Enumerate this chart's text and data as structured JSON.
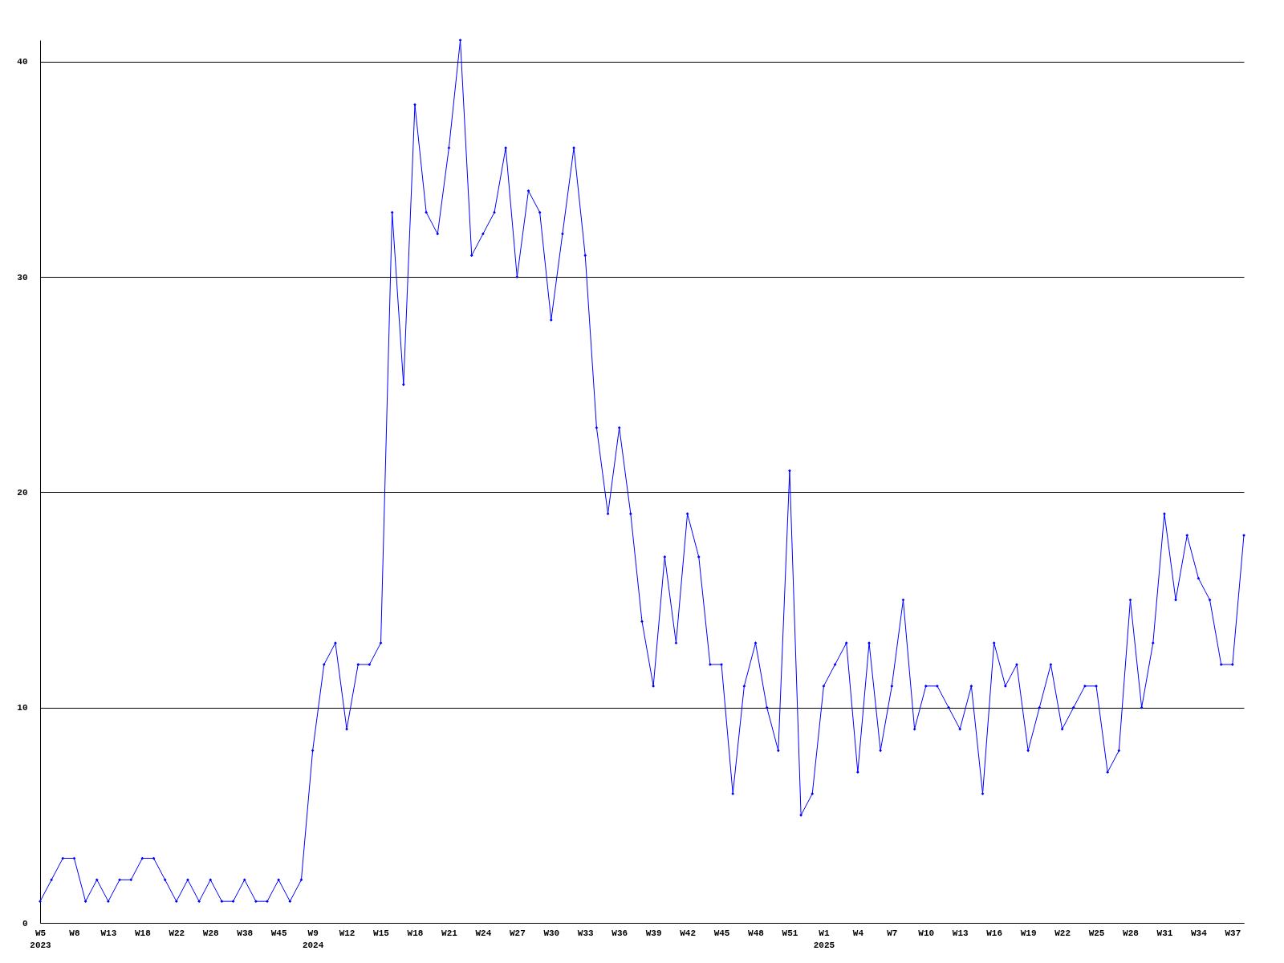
{
  "chart_data": {
    "type": "line",
    "categories": [
      "W5\n2023",
      null,
      null,
      "W8",
      null,
      null,
      "W13",
      null,
      null,
      "W18",
      null,
      null,
      "W22",
      null,
      null,
      "W28",
      null,
      null,
      "W38",
      null,
      null,
      "W45",
      null,
      null,
      "W9\n2024",
      null,
      null,
      "W12",
      null,
      null,
      "W15",
      null,
      null,
      "W18",
      null,
      null,
      "W21",
      null,
      null,
      "W24",
      null,
      null,
      "W27",
      null,
      null,
      "W30",
      null,
      null,
      "W33",
      null,
      null,
      "W36",
      null,
      null,
      "W39",
      null,
      null,
      "W42",
      null,
      null,
      "W45",
      null,
      null,
      "W48",
      null,
      null,
      "W51",
      null,
      null,
      "W1\n2025",
      null,
      null,
      "W4",
      null,
      null,
      "W7",
      null,
      null,
      "W10",
      null,
      null,
      "W13",
      null,
      null,
      "W16",
      null,
      null,
      "W19",
      null,
      null,
      "W22",
      null,
      null,
      "W25",
      null,
      null,
      "W28",
      null,
      null,
      "W31",
      null,
      null,
      "W34",
      null,
      null,
      "W37",
      null
    ],
    "values": [
      1,
      2,
      3,
      3,
      1,
      2,
      1,
      2,
      2,
      3,
      3,
      2,
      1,
      2,
      1,
      2,
      1,
      1,
      2,
      1,
      1,
      2,
      1,
      2,
      8,
      12,
      13,
      9,
      12,
      12,
      13,
      33,
      25,
      38,
      33,
      32,
      36,
      41,
      31,
      32,
      33,
      36,
      30,
      34,
      33,
      28,
      32,
      36,
      31,
      23,
      19,
      23,
      19,
      14,
      11,
      17,
      13,
      19,
      17,
      12,
      12,
      6,
      11,
      13,
      10,
      8,
      21,
      5,
      6,
      11,
      12,
      13,
      7,
      13,
      8,
      11,
      15,
      9,
      11,
      11,
      10,
      9,
      11,
      6,
      13,
      11,
      12,
      8,
      10,
      12,
      9,
      10,
      11,
      11,
      7,
      8,
      15,
      10,
      13,
      19,
      15,
      18,
      16,
      15,
      12,
      12,
      18
    ],
    "color": "#0000ff",
    "ylim": [
      0,
      41
    ],
    "yticks": [
      0,
      10,
      20,
      30,
      40
    ],
    "grid": "y",
    "marker": "diamond"
  }
}
